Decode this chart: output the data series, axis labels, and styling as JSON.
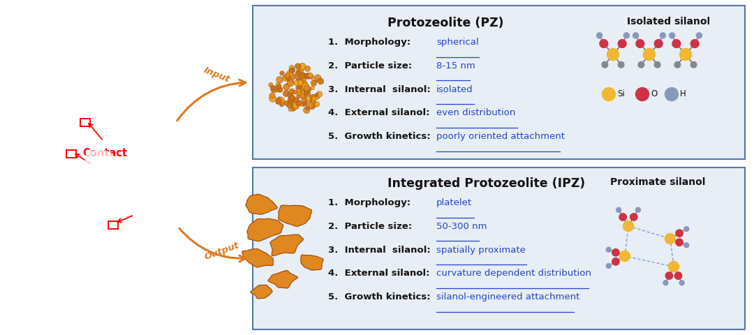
{
  "bg_color": "#ffffff",
  "box_bg": "#e8eef5",
  "box_edge_color": "#5577aa",
  "arrow_color": "#e07820",
  "contact_color": "#ff0000",
  "title1": "Protozeolite (PZ)",
  "title2": "Integrated Protozeolite (IPZ)",
  "silanol1_title": "Isolated silanol",
  "silanol2_title": "Proximate silanol",
  "items1": [
    [
      "1.  Morphology:",
      "spherical"
    ],
    [
      "2.  Particle size:",
      "8-15 nm"
    ],
    [
      "3.  Internal  silanol:",
      "isolated"
    ],
    [
      "4.  External silanol:",
      "even distribution"
    ],
    [
      "5.  Growth kinetics:",
      "poorly oriented attachment"
    ]
  ],
  "items2": [
    [
      "1.  Morphology:",
      "platelet"
    ],
    [
      "2.  Particle size:",
      "50-300 nm"
    ],
    [
      "3.  Internal  silanol:",
      "spatially proximate"
    ],
    [
      "4.  External silanol:",
      "curvature dependent distribution"
    ],
    [
      "5.  Growth kinetics:",
      "silanol-engineered attachment"
    ]
  ],
  "contact_label": "Contact",
  "input_label": "Input",
  "output_label": "Output",
  "si_color": "#f0b830",
  "o_color": "#cc3344",
  "h_color": "#8899bb",
  "bond_color": "#666666",
  "orange_particle": "#e08820",
  "dark_orange": "#a05010",
  "link_color": "#2244cc",
  "text_color": "#111111"
}
